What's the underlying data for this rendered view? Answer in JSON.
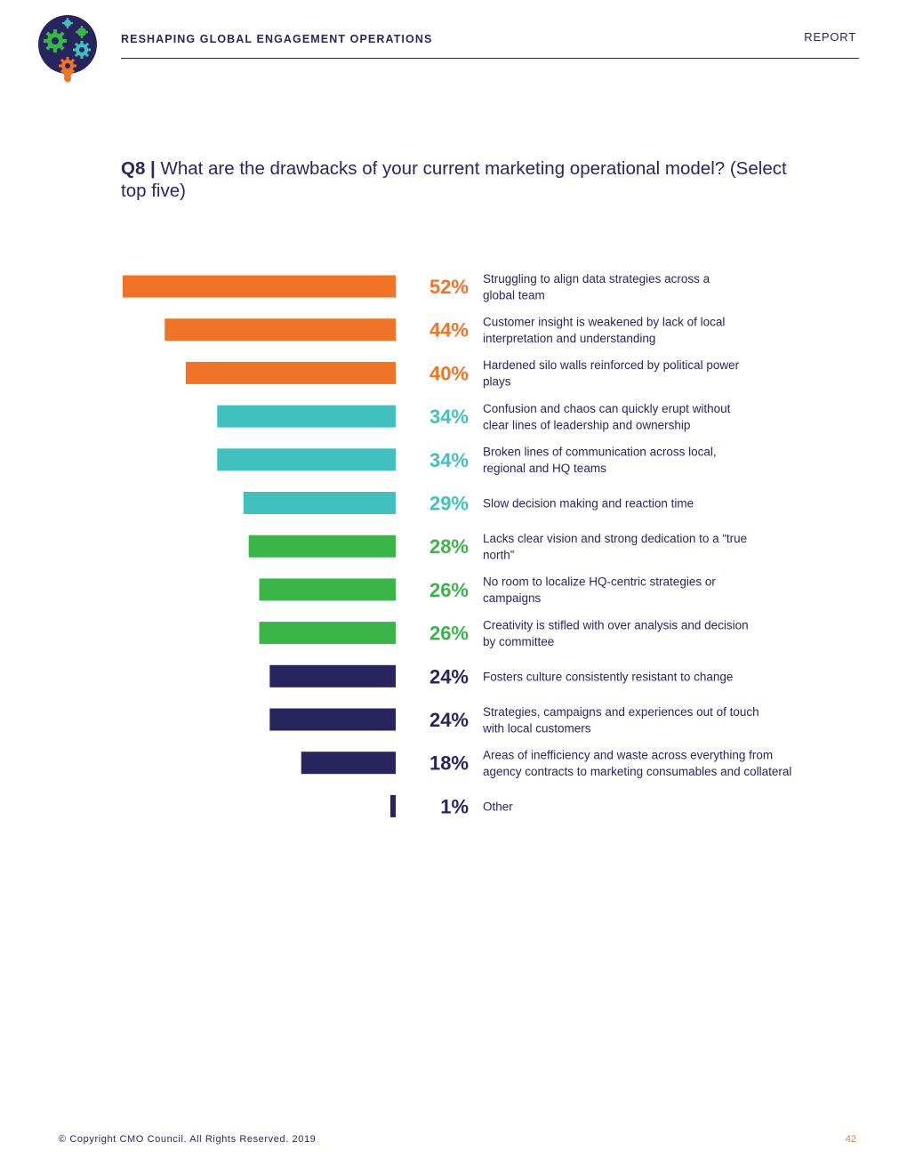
{
  "header": {
    "title": "RESHAPING GLOBAL ENGAGEMENT OPERATIONS",
    "report_label": "REPORT"
  },
  "question": {
    "number": "Q8 |",
    "text": "What are the drawbacks of your current marketing operational model? (Select top five)"
  },
  "colors": {
    "orange": "#f07427",
    "teal": "#42c0c0",
    "green": "#3bb54a",
    "navy": "#27245e"
  },
  "chart_data": {
    "type": "bar",
    "orientation": "horizontal",
    "title": "What are the drawbacks of your current marketing operational model? (Select top five)",
    "unit": "%",
    "xlim": [
      0,
      52
    ],
    "items": [
      {
        "value": 52,
        "label": "52%",
        "color": "orange",
        "lines": [
          "Struggling to align data strategies across a",
          "global team"
        ]
      },
      {
        "value": 44,
        "label": "44%",
        "color": "orange",
        "lines": [
          "Customer insight is weakened by lack of local",
          "interpretation and understanding"
        ]
      },
      {
        "value": 40,
        "label": "40%",
        "color": "orange",
        "lines": [
          "Hardened silo walls reinforced by political power",
          "plays"
        ]
      },
      {
        "value": 34,
        "label": "34%",
        "color": "teal",
        "lines": [
          "Confusion and chaos can quickly erupt without",
          "clear lines of leadership and ownership"
        ]
      },
      {
        "value": 34,
        "label": "34%",
        "color": "teal",
        "lines": [
          "Broken lines of communication across local,",
          "regional and HQ teams"
        ]
      },
      {
        "value": 29,
        "label": "29%",
        "color": "teal",
        "lines": [
          "Slow decision making and reaction time"
        ]
      },
      {
        "value": 28,
        "label": "28%",
        "color": "green",
        "lines": [
          "Lacks clear vision and strong dedication to a “true",
          "north”"
        ]
      },
      {
        "value": 26,
        "label": "26%",
        "color": "green",
        "lines": [
          "No room to localize HQ-centric strategies or",
          "campaigns"
        ]
      },
      {
        "value": 26,
        "label": "26%",
        "color": "green",
        "lines": [
          "Creativity is stifled with over analysis and decision",
          "by committee"
        ]
      },
      {
        "value": 24,
        "label": "24%",
        "color": "navy",
        "lines": [
          "Fosters culture consistently resistant to change"
        ]
      },
      {
        "value": 24,
        "label": "24%",
        "color": "navy",
        "lines": [
          "Strategies, campaigns and experiences out of touch",
          "with local customers"
        ]
      },
      {
        "value": 18,
        "label": "18%",
        "color": "navy",
        "lines": [
          "Areas of inefficiency and waste across everything from",
          "agency contracts to marketing consumables and collateral"
        ]
      },
      {
        "value": 1,
        "label": "1%",
        "color": "navy",
        "lines": [
          "Other"
        ]
      }
    ]
  },
  "footer": {
    "copyright": "© Copyright CMO Council. All Rights Reserved. 2019",
    "page_number": "42"
  }
}
